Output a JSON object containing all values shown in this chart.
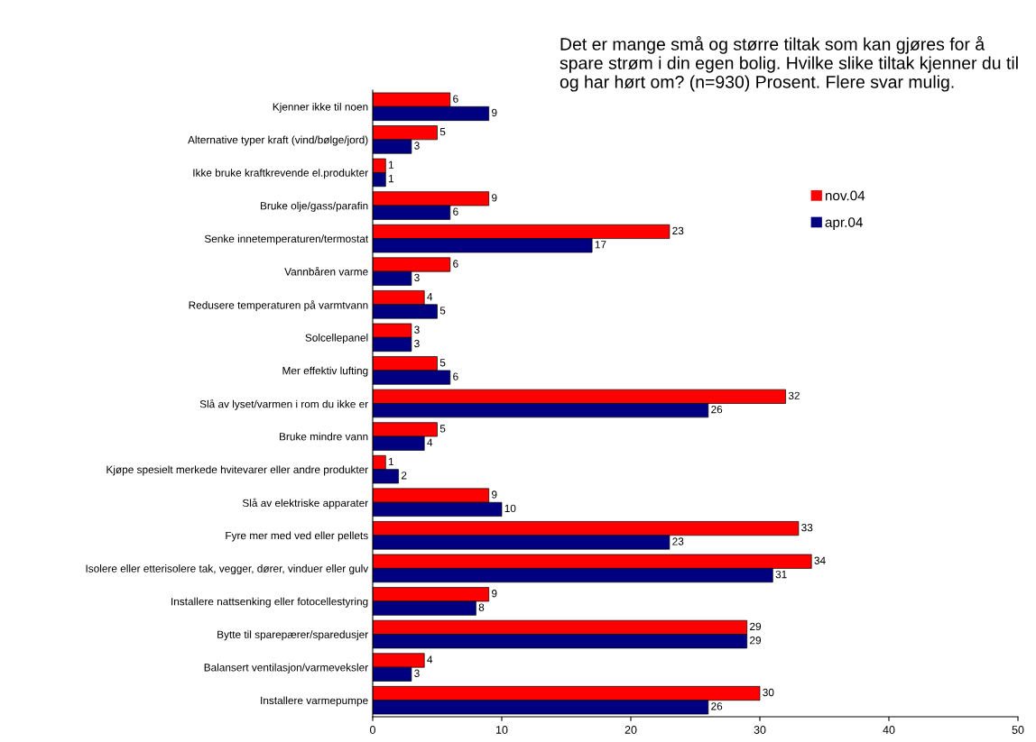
{
  "chart_data": {
    "type": "bar",
    "orientation": "horizontal",
    "title": "Det er mange små og større tiltak som kan gjøres for å spare strøm i din egen bolig. Hvilke slike tiltak kjenner du til og har hørt om? (n=930) Prosent. Flere svar mulig.",
    "categories": [
      "Kjenner ikke til noen",
      "Alternative typer kraft (vind/bølge/jord)",
      "Ikke bruke kraftkrevende el.produkter",
      "Bruke olje/gass/parafin",
      "Senke innetemperaturen/termostat",
      "Vannbåren varme",
      "Redusere temperaturen på varmtvann",
      "Solcellepanel",
      "Mer effektiv lufting",
      "Slå av lyset/varmen i rom du ikke er",
      "Bruke mindre vann",
      "Kjøpe spesielt merkede hvitevarer eller andre produkter",
      "Slå av elektriske apparater",
      "Fyre mer med ved eller pellets",
      "Isolere eller etterisolere tak, vegger, dører, vinduer eller gulv",
      "Installere nattsenking eller fotocellestyring",
      "Bytte til sparepærer/sparedusjer",
      "Balansert ventilasjon/varmeveksler",
      "Installere varmepumpe"
    ],
    "series": [
      {
        "name": "nov.04",
        "color": "#ff0000",
        "values": [
          6,
          5,
          1,
          9,
          23,
          6,
          4,
          3,
          5,
          32,
          5,
          1,
          9,
          33,
          34,
          9,
          29,
          4,
          30
        ]
      },
      {
        "name": "apr.04",
        "color": "#000080",
        "values": [
          9,
          3,
          1,
          6,
          17,
          3,
          5,
          3,
          6,
          26,
          4,
          2,
          10,
          23,
          31,
          8,
          29,
          3,
          26
        ]
      }
    ],
    "xlim": [
      0,
      50
    ],
    "xticks": [
      0,
      10,
      20,
      30,
      40,
      50
    ],
    "data_labels": true,
    "legend": "right",
    "grid": false
  }
}
